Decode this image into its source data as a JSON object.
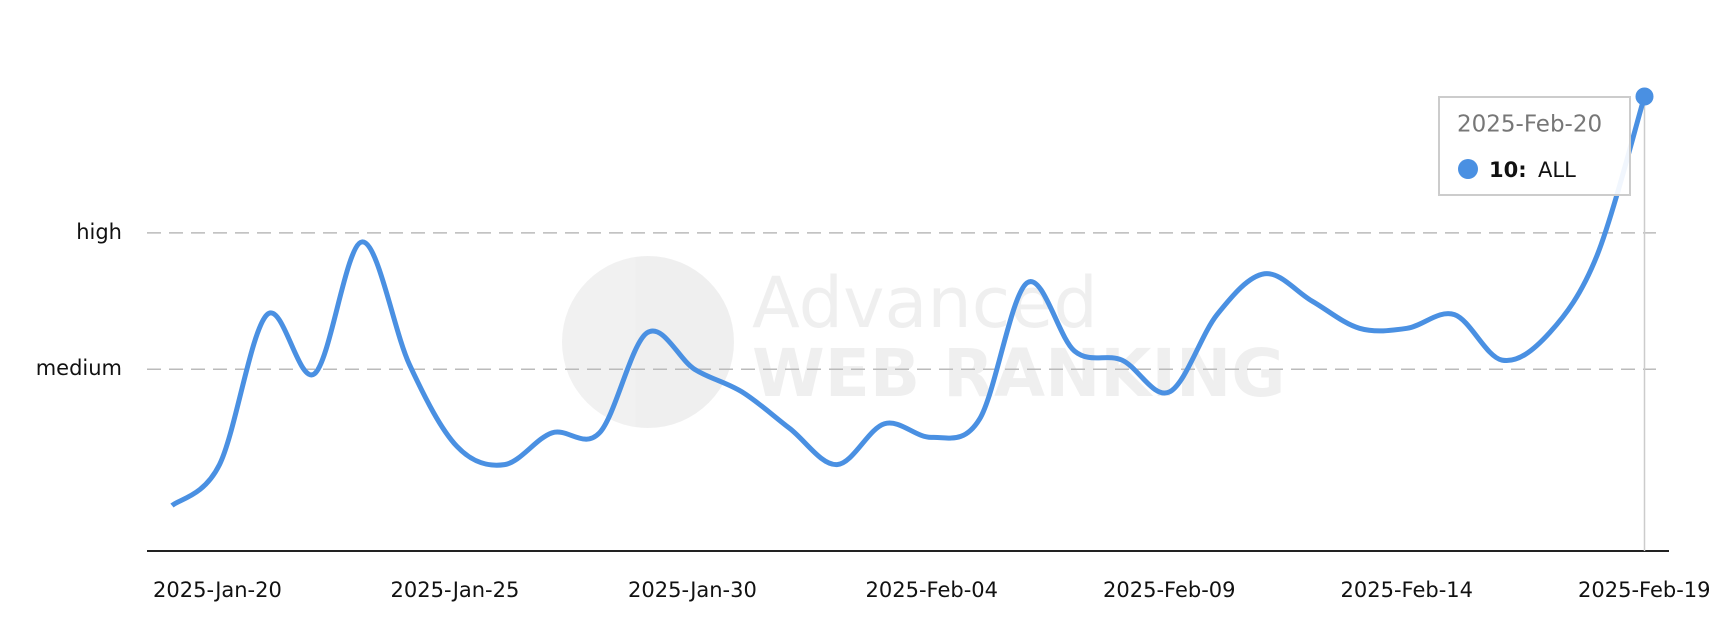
{
  "chart_data": {
    "type": "line",
    "x": [
      "2025-Jan-20",
      "2025-Jan-21",
      "2025-Jan-22",
      "2025-Jan-23",
      "2025-Jan-24",
      "2025-Jan-25",
      "2025-Jan-26",
      "2025-Jan-27",
      "2025-Jan-28",
      "2025-Jan-29",
      "2025-Jan-30",
      "2025-Jan-31",
      "2025-Feb-01",
      "2025-Feb-02",
      "2025-Feb-03",
      "2025-Feb-04",
      "2025-Feb-05",
      "2025-Feb-06",
      "2025-Feb-07",
      "2025-Feb-08",
      "2025-Feb-09",
      "2025-Feb-10",
      "2025-Feb-11",
      "2025-Feb-12",
      "2025-Feb-13",
      "2025-Feb-14",
      "2025-Feb-15",
      "2025-Feb-16",
      "2025-Feb-17",
      "2025-Feb-18",
      "2025-Feb-19",
      "2025-Feb-20"
    ],
    "series": [
      {
        "name": "ALL",
        "color": "#4a90e2",
        "values": [
          1.0,
          1.9,
          5.2,
          3.9,
          6.8,
          4.1,
          2.3,
          1.9,
          2.6,
          2.6,
          4.8,
          4.0,
          3.5,
          2.7,
          1.9,
          2.8,
          2.5,
          2.9,
          5.9,
          4.4,
          4.2,
          3.5,
          5.2,
          6.1,
          5.5,
          4.9,
          4.9,
          5.2,
          4.2,
          4.8,
          6.5,
          10
        ]
      }
    ],
    "ylim": [
      0,
      10
    ],
    "yticks": [
      {
        "value": 4,
        "label": "medium"
      },
      {
        "value": 7,
        "label": "high"
      }
    ],
    "xticks": [
      "2025-Jan-20",
      "2025-Jan-25",
      "2025-Jan-30",
      "2025-Feb-04",
      "2025-Feb-09",
      "2025-Feb-14",
      "2025-Feb-19"
    ],
    "grid": true,
    "tooltip": {
      "title": "2025-Feb-20",
      "value_label": "10:",
      "series": "ALL"
    },
    "watermark": [
      "Advanced",
      "WEB RANKING"
    ]
  }
}
